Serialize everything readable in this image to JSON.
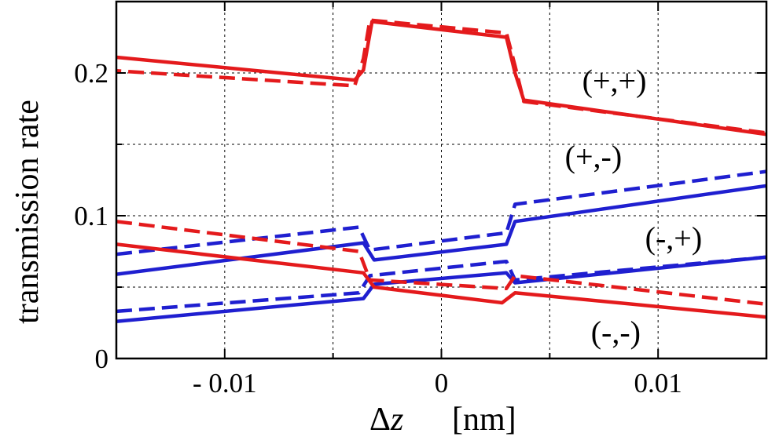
{
  "chart_data": {
    "type": "line",
    "title": "",
    "xlabel": "Δz",
    "xlabel_italic_var": "z",
    "xlabel_unit": "[nm]",
    "ylabel": "transmission rate",
    "xlim": [
      -0.015,
      0.015
    ],
    "ylim": [
      0,
      0.25
    ],
    "grid": true,
    "xticks": [
      {
        "value": -0.01,
        "label": "- 0.01"
      },
      {
        "value": 0,
        "label": "0"
      },
      {
        "value": 0.01,
        "label": "0.01"
      }
    ],
    "xgrid": [
      -0.01,
      -0.005,
      0,
      0.005,
      0.01
    ],
    "yticks": [
      {
        "value": 0,
        "label": "0"
      },
      {
        "value": 0.1,
        "label": "0.1"
      },
      {
        "value": 0.2,
        "label": "0.2"
      }
    ],
    "ygrid": [
      0.05,
      0.1,
      0.15,
      0.2
    ],
    "colors": {
      "red": "#e41a1c",
      "blue": "#1f1fd0"
    },
    "series": [
      {
        "name": "(+,+) solid",
        "color": "red",
        "style": "solid",
        "x": [
          -0.015,
          -0.004,
          -0.0036,
          -0.0032,
          0.003,
          0.0034,
          0.0038,
          0.015
        ],
        "y": [
          0.211,
          0.195,
          0.202,
          0.236,
          0.225,
          0.2,
          0.181,
          0.157
        ]
      },
      {
        "name": "(+,+) dashed",
        "color": "red",
        "style": "dashed",
        "x": [
          -0.0155,
          -0.004,
          -0.0036,
          -0.0033,
          0.003,
          0.0034,
          0.0038,
          0.015
        ],
        "y": [
          0.202,
          0.191,
          0.21,
          0.237,
          0.228,
          0.205,
          0.18,
          0.158
        ]
      },
      {
        "name": "(+,-) solid",
        "color": "blue",
        "style": "solid",
        "x": [
          -0.015,
          -0.0036,
          -0.0031,
          0.003,
          0.0034,
          0.015
        ],
        "y": [
          0.059,
          0.081,
          0.069,
          0.08,
          0.096,
          0.121
        ]
      },
      {
        "name": "(+,-) dashed",
        "color": "blue",
        "style": "dashed",
        "x": [
          -0.015,
          -0.0038,
          -0.0033,
          0.003,
          0.0034,
          0.015
        ],
        "y": [
          0.073,
          0.092,
          0.076,
          0.088,
          0.108,
          0.131
        ]
      },
      {
        "name": "(-,+) solid",
        "color": "blue",
        "style": "solid",
        "x": [
          -0.015,
          -0.0036,
          -0.0031,
          0.003,
          0.0034,
          0.015
        ],
        "y": [
          0.026,
          0.042,
          0.052,
          0.06,
          0.053,
          0.071
        ]
      },
      {
        "name": "(-,+) dashed",
        "color": "blue",
        "style": "dashed",
        "x": [
          -0.015,
          -0.0038,
          -0.0033,
          0.003,
          0.0034,
          0.015
        ],
        "y": [
          0.033,
          0.046,
          0.058,
          0.068,
          0.055,
          0.071
        ]
      },
      {
        "name": "(-,-) solid",
        "color": "red",
        "style": "solid",
        "x": [
          -0.015,
          -0.0036,
          -0.0031,
          0.0028,
          0.0034,
          0.015
        ],
        "y": [
          0.08,
          0.06,
          0.05,
          0.039,
          0.046,
          0.029
        ]
      },
      {
        "name": "(-,-) dashed",
        "color": "red",
        "style": "dashed",
        "x": [
          -0.015,
          -0.0038,
          -0.0033,
          0.003,
          0.0034,
          0.015
        ],
        "y": [
          0.096,
          0.075,
          0.055,
          0.049,
          0.058,
          0.038
        ]
      }
    ],
    "annotations": [
      {
        "text": "(+,+)",
        "x": 0.0065,
        "y": 0.187
      },
      {
        "text": "(+,-)",
        "x": 0.0057,
        "y": 0.134
      },
      {
        "text": "(-,+)",
        "x": 0.0094,
        "y": 0.077
      },
      {
        "text": "(-,-)",
        "x": 0.0069,
        "y": 0.011
      }
    ]
  }
}
